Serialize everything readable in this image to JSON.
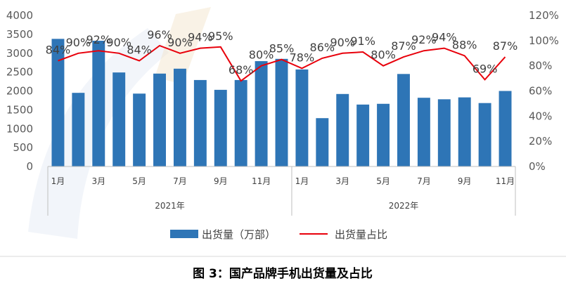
{
  "chart_data": {
    "type": "bar+line",
    "categories": [
      "1月",
      "2月",
      "3月",
      "4月",
      "5月",
      "6月",
      "7月",
      "8月",
      "9月",
      "10月",
      "11月",
      "12月",
      "1月",
      "2月",
      "3月",
      "4月",
      "5月",
      "6月",
      "7月",
      "8月",
      "9月",
      "10月",
      "11月"
    ],
    "x_tick_labels": [
      "1月",
      "",
      "3月",
      "",
      "5月",
      "",
      "7月",
      "",
      "9月",
      "",
      "11月",
      "",
      "1月",
      "",
      "3月",
      "",
      "5月",
      "",
      "7月",
      "",
      "9月",
      "",
      "11月"
    ],
    "groups": [
      {
        "label": "2021年",
        "start": 0,
        "end": 11
      },
      {
        "label": "2022年",
        "start": 12,
        "end": 22
      }
    ],
    "series": [
      {
        "name": "出货量（万部）",
        "type": "bar",
        "axis": "left",
        "color": "#2E75B6",
        "values": [
          3380,
          1950,
          3330,
          2490,
          1930,
          2460,
          2590,
          2290,
          2030,
          2290,
          2790,
          2850,
          2570,
          1280,
          1920,
          1640,
          1660,
          2450,
          1820,
          1780,
          1830,
          1680,
          2000
        ]
      },
      {
        "name": "出货量占比",
        "type": "line",
        "axis": "right",
        "color": "#E8000B",
        "values": [
          84,
          90,
          92,
          90,
          84,
          96,
          90,
          94,
          95,
          68,
          80,
          85,
          78,
          86,
          90,
          91,
          80,
          87,
          92,
          94,
          88,
          69,
          87
        ],
        "labels": [
          "84%",
          "90%",
          "92%",
          "90%",
          "84%",
          "96%",
          "90%",
          "94%",
          "95%",
          "68%",
          "80%",
          "85%",
          "78%",
          "86%",
          "90%",
          "91%",
          "80%",
          "87%",
          "92%",
          "94%",
          "88%",
          "69%",
          "87%"
        ]
      }
    ],
    "y_left": {
      "min": 0,
      "max": 4000,
      "step": 500,
      "ticks": [
        "0",
        "500",
        "1000",
        "1500",
        "2000",
        "2500",
        "3000",
        "3500",
        "4000"
      ]
    },
    "y_right": {
      "min": 0,
      "max": 120,
      "step": 20,
      "ticks": [
        "0%",
        "20%",
        "40%",
        "60%",
        "80%",
        "100%",
        "120%"
      ]
    },
    "legend_position": "bottom",
    "grid": false
  },
  "caption": "图 3：国产品牌手机出货量及占比"
}
